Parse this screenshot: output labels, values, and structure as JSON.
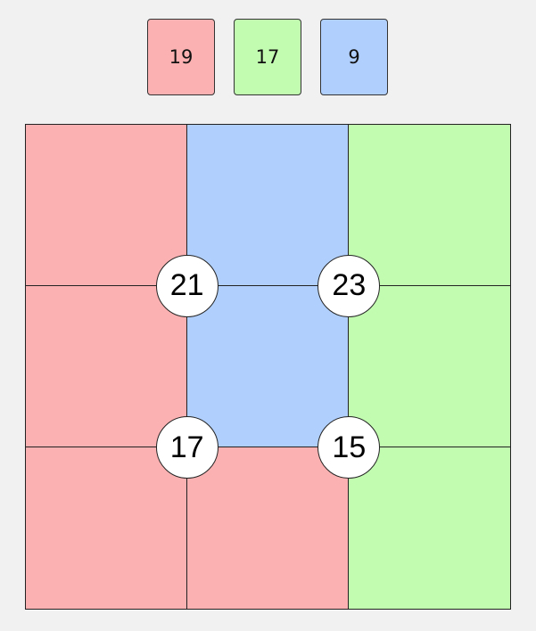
{
  "colors": {
    "red": "#fbb1b1",
    "green": "#c1fcb1",
    "blue": "#b0cffc"
  },
  "swatches": [
    {
      "color": "red",
      "value": "19"
    },
    {
      "color": "green",
      "value": "17"
    },
    {
      "color": "blue",
      "value": "9"
    }
  ],
  "grid": [
    [
      "red",
      "blue",
      "green"
    ],
    [
      "red",
      "blue",
      "green"
    ],
    [
      "red",
      "red",
      "green"
    ]
  ],
  "clues": [
    {
      "row": 1,
      "col": 1,
      "value": "21"
    },
    {
      "row": 1,
      "col": 2,
      "value": "23"
    },
    {
      "row": 2,
      "col": 1,
      "value": "17"
    },
    {
      "row": 2,
      "col": 2,
      "value": "15"
    }
  ]
}
